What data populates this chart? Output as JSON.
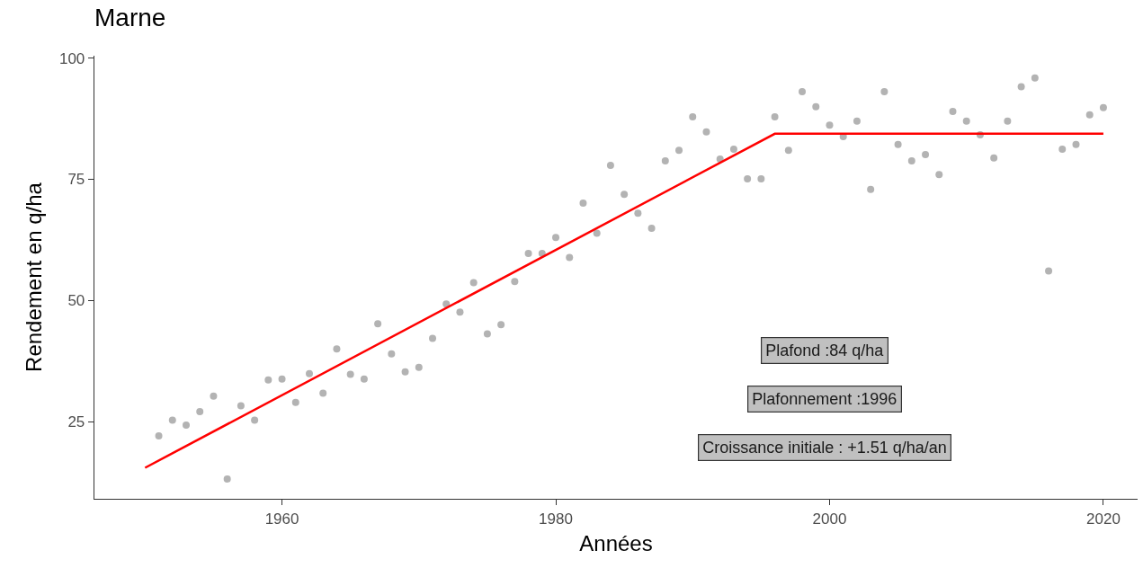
{
  "chart_data": {
    "type": "scatter",
    "title": "Marne",
    "xlabel": "Années",
    "ylabel": "Rendement en q/ha",
    "xlim": [
      1946.3,
      2022.5
    ],
    "xticks": [
      1960,
      1980,
      2000,
      2020
    ],
    "ylim": [
      9.1,
      100.5
    ],
    "yticks": [
      25,
      50,
      75,
      100
    ],
    "grid": false,
    "marker": "circle",
    "series": [
      {
        "color": "#b3b3b3",
        "x": [
          1951,
          1952,
          1953,
          1954,
          1955,
          1956,
          1957,
          1958,
          1959,
          1960,
          1961,
          1962,
          1963,
          1964,
          1965,
          1966,
          1967,
          1968,
          1969,
          1970,
          1971,
          1972,
          1973,
          1974,
          1975,
          1976,
          1977,
          1978,
          1979,
          1980,
          1981,
          1982,
          1983,
          1984,
          1985,
          1986,
          1987,
          1988,
          1989,
          1990,
          1991,
          1992,
          1993,
          1994,
          1995,
          1996,
          1997,
          1998,
          1999,
          2000,
          2001,
          2002,
          2003,
          2004,
          2005,
          2006,
          2007,
          2008,
          2009,
          2010,
          2011,
          2012,
          2013,
          2014,
          2015,
          2016,
          2017,
          2018,
          2019,
          2020
        ],
        "values": [
          22.1,
          25.3,
          24.3,
          27.1,
          30.3,
          13.2,
          28.3,
          25.3,
          33.6,
          33.8,
          29.0,
          34.9,
          30.9,
          40.0,
          34.8,
          33.8,
          45.2,
          39.0,
          35.3,
          36.2,
          42.2,
          49.3,
          47.6,
          53.7,
          43.1,
          45.0,
          53.9,
          59.7,
          59.7,
          63.0,
          58.9,
          70.1,
          63.9,
          77.9,
          71.9,
          68.0,
          64.9,
          78.8,
          81.0,
          87.9,
          84.8,
          79.2,
          81.2,
          75.1,
          75.1,
          87.9,
          81.0,
          93.1,
          90.0,
          86.2,
          83.8,
          87.0,
          72.9,
          93.1,
          82.2,
          78.8,
          80.1,
          76.0,
          89.0,
          87.0,
          84.2,
          79.4,
          87.0,
          94.1,
          95.9,
          56.1,
          81.2,
          82.2,
          88.3,
          89.8
        ]
      },
      {
        "type": "line",
        "color": "#ff0000",
        "line_style": "solid",
        "marker": "none",
        "x": [
          1950,
          1996,
          2020
        ],
        "values": [
          15.5,
          84.4,
          84.4
        ]
      }
    ],
    "annotations": [
      "Plafond :84 q/ha",
      "Plafonnement :1996",
      "Croissance initiale : +1.51 q/ha/an"
    ]
  }
}
